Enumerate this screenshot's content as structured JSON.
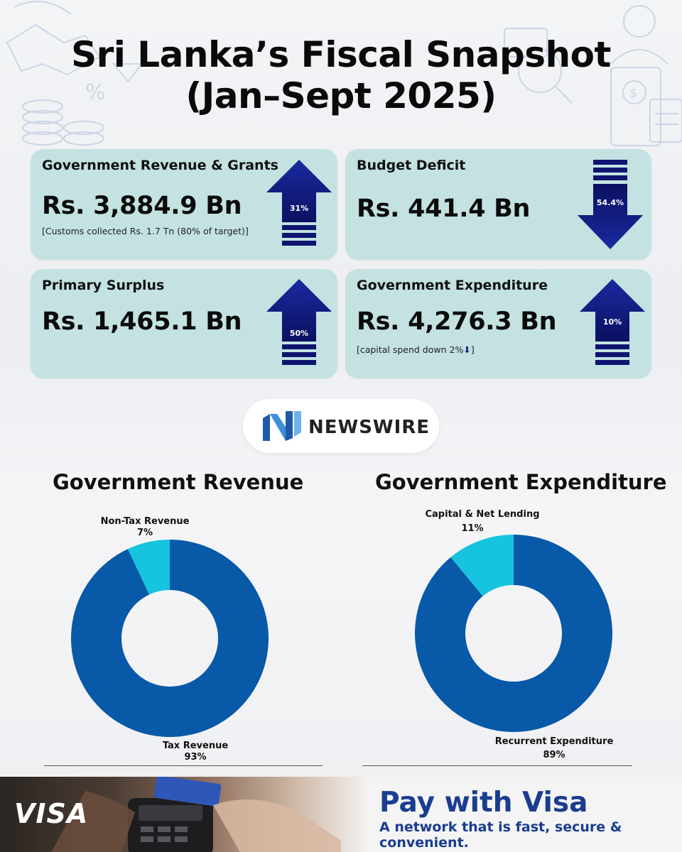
{
  "title_line1": "Sri Lanka’s Fiscal Snapshot",
  "title_line2": "(Jan–Sept 2025)",
  "cards": {
    "revenue": {
      "label": "Government Revenue & Grants",
      "value": "Rs. 3,884.9 Bn",
      "note": "[Customs collected Rs. 1.7 Tn (80% of target)]",
      "change": "31%",
      "direction": "up"
    },
    "deficit": {
      "label": "Budget Deficit",
      "value": "Rs. 441.4 Bn",
      "change": "54.4%",
      "direction": "down"
    },
    "surplus": {
      "label": "Primary Surplus",
      "value": "Rs. 1,465.1 Bn",
      "change": "50%",
      "direction": "up"
    },
    "expenditure": {
      "label": "Government Expenditure",
      "value": "Rs. 4,276.3 Bn",
      "note_text": "[capital spend down 2%",
      "note_close": "]",
      "change": "10%",
      "direction": "up"
    }
  },
  "brand": {
    "name": "NEWSWIRE",
    "icon": "newswire-n-icon"
  },
  "colors": {
    "card_bg": "#c3e2e1",
    "arrow_dark": "#0e1470",
    "donut_major": "#0859a8",
    "donut_minor": "#17c4e0",
    "ad_blue": "#1a3d8f"
  },
  "chart_data": [
    {
      "type": "pie",
      "title": "Government Revenue",
      "donut": true,
      "slices": [
        {
          "name": "Non-Tax Revenue",
          "value": 7,
          "label": "7%"
        },
        {
          "name": "Tax Revenue",
          "value": 93,
          "label": "93%"
        }
      ]
    },
    {
      "type": "pie",
      "title": "Government Expenditure",
      "donut": true,
      "slices": [
        {
          "name": "Capital & Net Lending",
          "value": 11,
          "label": "11%"
        },
        {
          "name": "Recurrent Expenditure",
          "value": 89,
          "label": "89%"
        }
      ]
    }
  ],
  "ad": {
    "logo": "VISA",
    "headline": "Pay with Visa",
    "tagline": "A network that is fast, secure & convenient."
  }
}
